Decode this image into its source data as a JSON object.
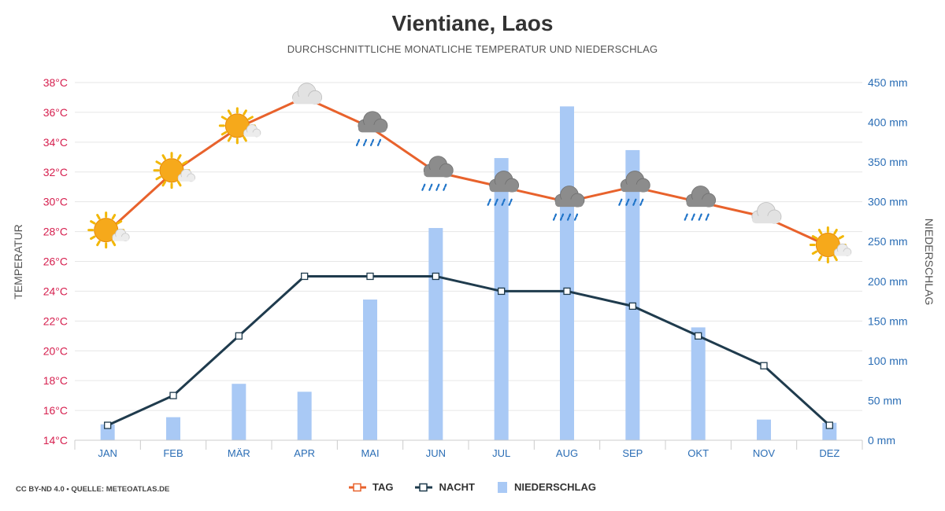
{
  "title": "Vientiane, Laos",
  "subtitle": "DURCHSCHNITTLICHE MONATLICHE TEMPERATUR UND NIEDERSCHLAG",
  "source": "CC BY-ND 4.0 • QUELLE: METEOATLAS.DE",
  "colors": {
    "tag": "#e8622c",
    "nacht": "#1f3b4d",
    "niederschlag": "#a9c9f5",
    "left_axis": "#d6204f",
    "right_axis": "#2a6db5",
    "month_labels": "#2a6db5",
    "grid": "#e6e6e6"
  },
  "chart_data": {
    "type": "line",
    "title": "Vientiane, Laos",
    "subtitle": "DURCHSCHNITTLICHE MONATLICHE TEMPERATUR UND NIEDERSCHLAG",
    "categories": [
      "JAN",
      "FEB",
      "MÄR",
      "APR",
      "MAI",
      "JUN",
      "JUL",
      "AUG",
      "SEP",
      "OKT",
      "NOV",
      "DEZ"
    ],
    "ylabel": "TEMPERATUR",
    "y2label": "NIEDERSCHLAG",
    "ylim": [
      14,
      38
    ],
    "y2lim": [
      0,
      450
    ],
    "yticks": [
      "14°C",
      "16°C",
      "18°C",
      "20°C",
      "22°C",
      "24°C",
      "26°C",
      "28°C",
      "30°C",
      "32°C",
      "34°C",
      "36°C",
      "38°C"
    ],
    "y2ticks": [
      "0 mm",
      "50 mm",
      "100 mm",
      "150 mm",
      "200 mm",
      "250 mm",
      "300 mm",
      "350 mm",
      "400 mm",
      "450 mm"
    ],
    "grid": true,
    "legend_position": "bottom-center",
    "series": [
      {
        "name": "TAG",
        "type": "line",
        "axis": "left",
        "values": [
          28,
          32,
          35,
          37,
          35,
          32,
          31,
          30,
          31,
          30,
          29,
          27
        ]
      },
      {
        "name": "NACHT",
        "type": "line",
        "axis": "left",
        "values": [
          15,
          17,
          21,
          25,
          25,
          25,
          24,
          24,
          23,
          21,
          19,
          15
        ]
      },
      {
        "name": "NIEDERSCHLAG",
        "type": "bar",
        "axis": "right",
        "values": [
          20,
          29,
          71,
          61,
          177,
          267,
          355,
          420,
          365,
          142,
          26,
          22
        ]
      }
    ],
    "weather_icons": [
      "sun-cloud-icon",
      "sun-cloud-icon",
      "sun-cloud-icon",
      "cloud-icon",
      "cloud-rain-icon",
      "cloud-rain-icon",
      "cloud-rain-icon",
      "cloud-rain-icon",
      "cloud-rain-icon",
      "cloud-rain-icon",
      "cloud-icon",
      "sun-cloud-icon"
    ]
  }
}
